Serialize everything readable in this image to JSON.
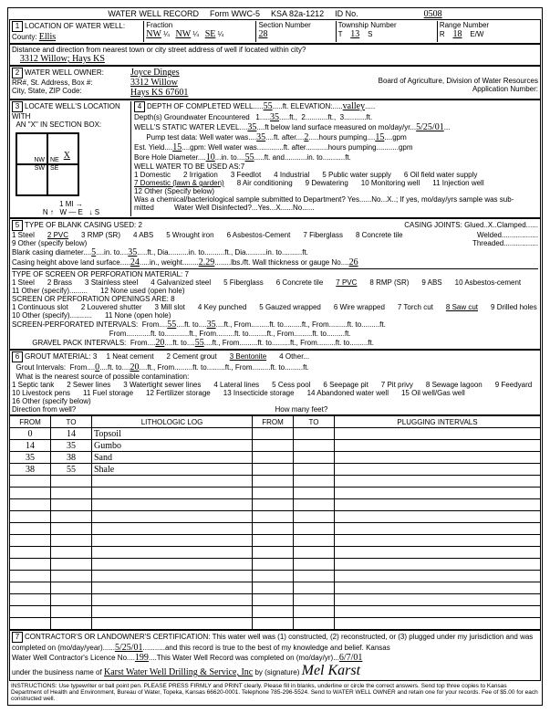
{
  "form": {
    "title": "WATER WELL RECORD",
    "form_no": "Form WWC-5",
    "ksa": "KSA 82a-1212",
    "id_label": "ID No.",
    "id": "0508"
  },
  "loc": {
    "county": "Ellis",
    "fraction": {
      "a": "NW",
      "b": "NW",
      "c": "SE"
    },
    "section": "28",
    "township": "13",
    "t_dir": "S",
    "range": "18",
    "r_dir": "E/W",
    "street": "3312 Willow; Hays KS",
    "dist_label": "Distance and direction from nearest town or city street address of well if located within city?"
  },
  "owner": {
    "name": "Joyce Dinges",
    "addr": "3312 Willow",
    "csz": "Hays KS 67601",
    "board": "Board of Agriculture, Division of Water Resources",
    "app_no_lbl": "Application Number:"
  },
  "well": {
    "depth": "55",
    "elevation": "valley",
    "gw_depth": "35",
    "gw_qty": "2",
    "static_level": "35",
    "measured_date": "5/25/01",
    "pump_was": "35",
    "pump_after": "2",
    "pump_hours": "15",
    "est_yield": "15",
    "bore_in": "10",
    "bore_to": "55",
    "use_note": "WELL WATER TO BE USED AS:7",
    "uses": [
      "1 Domestic",
      "2 Irrigation",
      "3 Feedlot",
      "4 Industrial",
      "5 Public water supply",
      "6 Oil field water supply",
      "7 Domestic (lawn & garden)",
      "8 Air conditioning",
      "9 Dewatering",
      "10 Monitoring well",
      "11 Injection well",
      "12 Other (Specify below)"
    ],
    "chem": "Was a chemical/bacteriological sample submitted to Department? Yes......No...X..; If yes, mo/day/yrs sample was sub-",
    "disinfected": "Water Well Disinfected?...Yes...X......No......"
  },
  "casing": {
    "title": "TYPE OF BLANK CASING USED: 2",
    "types": [
      "1 Steel",
      "2 PVC",
      "3 RMP (SR)",
      "4 ABS",
      "5 Wrought iron",
      "6 Asbestos-Cement",
      "7 Fiberglass",
      "8 Concrete tile",
      "9 Other (specify below)"
    ],
    "joints": "CASING JOINTS: Glued..X..Clamped......",
    "joints2": "Welded..................",
    "joints3": "Threaded.................",
    "dia": "5",
    "dia_to": "35",
    "above": "24",
    "weight": "2.29",
    "gauge": "26",
    "screen_title": "TYPE OF SCREEN OR PERFORATION MATERIAL: 7",
    "screens": [
      "1 Steel",
      "2 Brass",
      "3 Stainless steel",
      "4 Galvanized steel",
      "5 Fiberglass",
      "6 Concrete tile",
      "7 PVC",
      "8 RMP (SR)",
      "9 ABS",
      "10 Asbestos-cement",
      "11 Other (specify).........",
      "12 None used (open hole)"
    ],
    "open_title": "SCREEN OR PERFORATION OPENINGS ARE: 8",
    "opens": [
      "1 Continuous slot",
      "2 Louvered shutter",
      "3 Mill slot",
      "4 Key punched",
      "5 Gauzed wrapped",
      "6 Wire wrapped",
      "7 Torch cut",
      "8 Saw cut",
      "9 Drilled holes",
      "10 Other (specify)...........",
      "11 None (open hole)"
    ],
    "perf_from": "55",
    "perf_to": "35",
    "gravel_from": "20",
    "gravel_to": "55"
  },
  "grout": {
    "title": "GROUT MATERIAL: 3",
    "types": [
      "1 Neat cement",
      "2 Cement grout",
      "3 Bentonite",
      "4 Other..."
    ],
    "int_from": "0",
    "int_to": "20",
    "contam_q": "What is the nearest source of possible contamination:",
    "contams": [
      "1 Septic tank",
      "2 Sewer lines",
      "3 Watertight sewer lines",
      "4 Lateral lines",
      "5 Cess pool",
      "6 Seepage pit",
      "7 Pit privy",
      "8 Sewage lagoon",
      "9 Feedyard",
      "10 Livestock pens",
      "11 Fuel storage",
      "12 Fertilizer storage",
      "13 Insecticide storage",
      "14 Abandoned water well",
      "15 Oil well/Gas well",
      "16 Other (specify below)"
    ],
    "dir_q": "Direction from well?",
    "feet_q": "How many feet?"
  },
  "log": {
    "headers": [
      "FROM",
      "TO",
      "LITHOLOGIC LOG",
      "FROM",
      "TO",
      "PLUGGING INTERVALS"
    ],
    "rows": [
      [
        "0",
        "14",
        "Topsoil",
        "",
        "",
        ""
      ],
      [
        "14",
        "35",
        "Gumbo",
        "",
        "",
        ""
      ],
      [
        "35",
        "38",
        "Sand",
        "",
        "",
        ""
      ],
      [
        "38",
        "55",
        "Shale",
        "",
        "",
        ""
      ]
    ]
  },
  "cert": {
    "text1": "CONTRACTOR'S OR LANDOWNER'S CERTIFICATION: This water well was (1) constructed, (2) reconstructed, or (3) plugged under my jurisdiction and was",
    "text2": "completed on (mo/day/year)......",
    "date1": "5/25/01",
    "text3": "...........and this record is true to the best of my knowledge and belief. Kansas",
    "text4": "Water Well Contractor's Licence No....",
    "lic": "199",
    "text5": "....This Water Well Record was completed on (mo/day/yr)...",
    "date2": "6/7/01",
    "text6": "under the business name of",
    "biz": "Karst Water Well Drilling & Service, Inc",
    "text7": "by (signature)",
    "sig": "Mel Karst"
  },
  "instr": "INSTRUCTIONS: Use typewriter or ball point pen. PLEASE PRESS FIRMLY and PRINT clearly. Please fill in blanks, underline or circle the correct answers. Send top three copies to Kansas Department of Health and Environment, Bureau of Water, Topeka, Kansas 66620-0001. Telephone 785-296-5524. Send to WATER WELL OWNER and retain one for your records. Fee of $5.00 for each constructed well."
}
